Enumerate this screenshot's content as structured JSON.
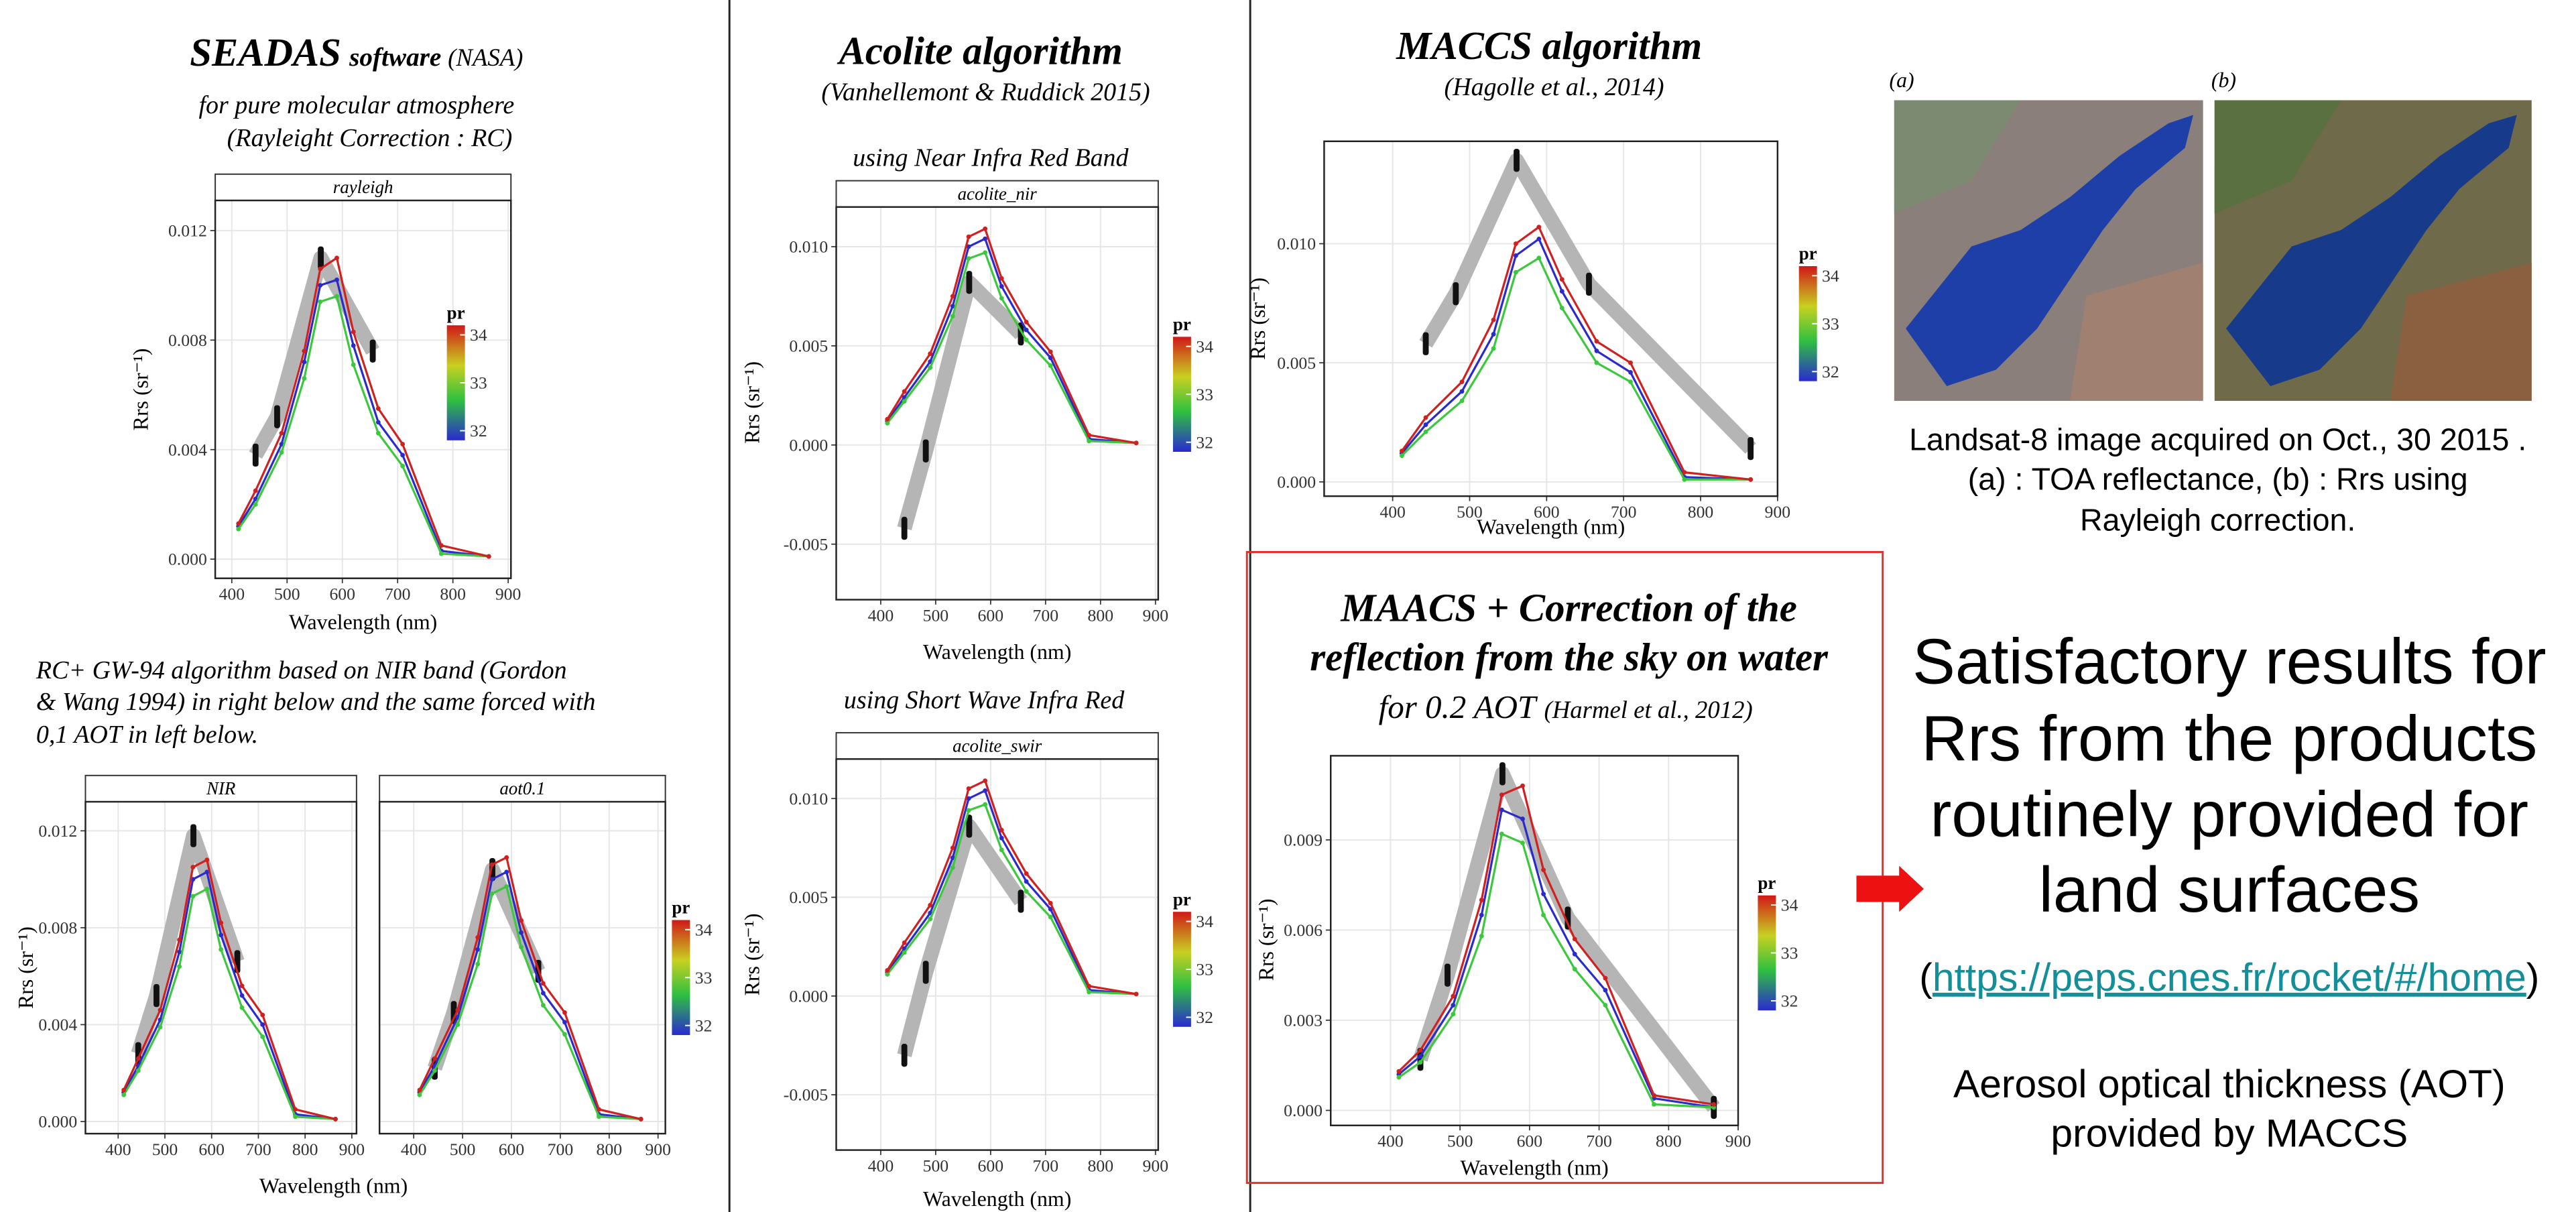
{
  "seadas": {
    "title": "SEADAS",
    "title_sub": "software",
    "title_note": "(NASA)",
    "lines": [
      "for pure molecular atmosphere",
      "(Rayleight Correction : RC)"
    ]
  },
  "gw94_note": [
    "RC+ GW-94 algorithm based on NIR band  (Gordon",
    "& Wang 1994) in right below and the same forced with",
    "0,1 AOT in left below."
  ],
  "acolite": {
    "title": "Acolite  algorithm",
    "subtitle": "(Vanhellemont & Ruddick 2015)",
    "nir_caption": "using Near Infra Red Band",
    "swir_caption": "using Short Wave Infra Red"
  },
  "maccs": {
    "title": "MACCS algorithm",
    "subtitle": "(Hagolle et al., 2014)"
  },
  "maacs_sky": {
    "title_lines": [
      "MAACS + Correction of the",
      "reflection from the sky on water"
    ],
    "subtitle": "for 0.2  AOT",
    "subtitle_ref": "(Harmel et al., 2012)"
  },
  "panels": [
    {
      "type": "line",
      "strip": "rayleigh",
      "x_label": "Wavelength (nm)",
      "y_label": "Rrs (sr⁻¹)",
      "xlim": [
        370,
        905
      ],
      "ylim": [
        -0.0007,
        0.0131
      ],
      "xticks": [
        400,
        500,
        600,
        700,
        800,
        900
      ],
      "yticks": [
        {
          "value": 0,
          "label": "0.000"
        },
        0.004,
        0.008,
        0.012
      ],
      "grid": true,
      "x": [
        412,
        443,
        490,
        531,
        560,
        590,
        620,
        665,
        709,
        779,
        865
      ],
      "series": [
        {
          "color": "#2b2bcc",
          "values": [
            0.0012,
            0.0022,
            0.0042,
            0.0072,
            0.01,
            0.0102,
            0.0078,
            0.005,
            0.0038,
            0.0003,
            0.0001
          ]
        },
        {
          "color": "#3cc83c",
          "values": [
            0.0011,
            0.002,
            0.0039,
            0.0066,
            0.0094,
            0.0096,
            0.0071,
            0.0046,
            0.0034,
            0.0002,
            0.0001
          ]
        },
        {
          "color": "#d02020",
          "values": [
            0.0013,
            0.0025,
            0.0046,
            0.0076,
            0.0106,
            0.011,
            0.0083,
            0.0055,
            0.0042,
            0.0005,
            0.0001
          ]
        }
      ],
      "reference": {
        "color": "#b5b5b5",
        "x": [
          443,
          482,
          561,
          655
        ],
        "values": [
          0.0038,
          0.0052,
          0.011,
          0.0076
        ]
      },
      "legend": {
        "title": "pr",
        "ticks": [
          32,
          33,
          34
        ],
        "lim": [
          31.8,
          34.2
        ]
      }
    },
    {
      "type": "line",
      "strip": "NIR",
      "x_label": "Wavelength (nm)",
      "y_label": "Rrs (sr⁻¹)",
      "xlim": [
        330,
        910
      ],
      "ylim": [
        -0.0005,
        0.0132
      ],
      "xticks": [
        400,
        500,
        600,
        700,
        800,
        900
      ],
      "yticks": [
        {
          "value": 0,
          "label": "0.000"
        },
        0.004,
        0.008,
        0.012
      ],
      "grid": true,
      "x": [
        412,
        443,
        490,
        531,
        560,
        590,
        620,
        665,
        709,
        779,
        865
      ],
      "series": [
        {
          "color": "#2b2bcc",
          "values": [
            0.0012,
            0.0023,
            0.0042,
            0.007,
            0.01,
            0.0103,
            0.0077,
            0.0052,
            0.004,
            0.0003,
            0.0001
          ]
        },
        {
          "color": "#3cc83c",
          "values": [
            0.0011,
            0.0021,
            0.0039,
            0.0064,
            0.0093,
            0.0096,
            0.0071,
            0.0047,
            0.0035,
            0.0002,
            0.0001
          ]
        },
        {
          "color": "#d02020",
          "values": [
            0.0013,
            0.0026,
            0.0046,
            0.0075,
            0.0105,
            0.0108,
            0.0082,
            0.0056,
            0.0044,
            0.0005,
            0.0001
          ]
        }
      ],
      "reference": {
        "color": "#b5b5b5",
        "x": [
          443,
          482,
          561,
          655
        ],
        "values": [
          0.0028,
          0.0052,
          0.0118,
          0.0066
        ]
      },
      "legend": {
        "title": "pr",
        "ticks": [
          32,
          33,
          34
        ],
        "lim": [
          31.8,
          34.2
        ]
      }
    },
    {
      "type": "line",
      "strip": "aot0.1",
      "xlim": [
        330,
        915
      ],
      "ylim": [
        -0.0005,
        0.0132
      ],
      "xticks": [
        400,
        500,
        600,
        700,
        800,
        900
      ],
      "yticks": [
        0,
        0.004,
        0.008,
        0.012
      ],
      "show_ytick_labels": false,
      "grid": true,
      "x": [
        412,
        443,
        490,
        531,
        560,
        590,
        620,
        665,
        709,
        779,
        865
      ],
      "series": [
        {
          "color": "#2b2bcc",
          "values": [
            0.0012,
            0.0023,
            0.0043,
            0.0071,
            0.01,
            0.0103,
            0.0078,
            0.0053,
            0.0041,
            0.0003,
            0.0001
          ]
        },
        {
          "color": "#3cc83c",
          "values": [
            0.0011,
            0.0021,
            0.004,
            0.0065,
            0.0094,
            0.0097,
            0.0072,
            0.0048,
            0.0036,
            0.0002,
            0.0001
          ]
        },
        {
          "color": "#d02020",
          "values": [
            0.0013,
            0.0026,
            0.0046,
            0.0076,
            0.0106,
            0.0109,
            0.0083,
            0.0057,
            0.0045,
            0.0005,
            0.0001
          ]
        }
      ],
      "reference": {
        "color": "#b5b5b5",
        "x": [
          443,
          482,
          561,
          655
        ],
        "values": [
          0.0022,
          0.0045,
          0.0104,
          0.0062
        ]
      }
    },
    {
      "type": "line",
      "strip": "acolite_nir",
      "x_label": "Wavelength (nm)",
      "y_label": "Rrs (sr⁻¹)",
      "xlim": [
        319,
        905
      ],
      "ylim": [
        -0.0078,
        0.012
      ],
      "xticks": [
        400,
        500,
        600,
        700,
        800,
        900
      ],
      "yticks": [
        -0.005,
        {
          "value": 0,
          "label": "0.000"
        },
        0.005,
        {
          "value": 0.01,
          "label": "0.010"
        }
      ],
      "grid": true,
      "x": [
        412,
        443,
        490,
        531,
        560,
        590,
        620,
        665,
        709,
        779,
        865
      ],
      "series": [
        {
          "color": "#2b2bcc",
          "values": [
            0.0012,
            0.0024,
            0.0042,
            0.007,
            0.01,
            0.0104,
            0.008,
            0.0058,
            0.0044,
            0.0003,
            0.0001
          ]
        },
        {
          "color": "#3cc83c",
          "values": [
            0.0011,
            0.0022,
            0.0039,
            0.0065,
            0.0094,
            0.0097,
            0.0074,
            0.0053,
            0.004,
            0.0002,
            0.0001
          ]
        },
        {
          "color": "#d02020",
          "values": [
            0.0013,
            0.0027,
            0.0046,
            0.0075,
            0.0105,
            0.0109,
            0.0084,
            0.0062,
            0.0047,
            0.0005,
            0.0001
          ]
        }
      ],
      "reference": {
        "color": "#b5b5b5",
        "x": [
          443,
          482,
          561,
          655
        ],
        "values": [
          -0.0042,
          -0.0003,
          0.0082,
          0.0056
        ]
      },
      "legend": {
        "title": "pr",
        "ticks": [
          32,
          33,
          34
        ],
        "lim": [
          31.8,
          34.2
        ]
      }
    },
    {
      "type": "line",
      "strip": "acolite_swir",
      "x_label": "Wavelength (nm)",
      "y_label": "Rrs (sr⁻¹)",
      "xlim": [
        319,
        905
      ],
      "ylim": [
        -0.0078,
        0.012
      ],
      "xticks": [
        400,
        500,
        600,
        700,
        800,
        900
      ],
      "yticks": [
        -0.005,
        {
          "value": 0,
          "label": "0.000"
        },
        0.005,
        {
          "value": 0.01,
          "label": "0.010"
        }
      ],
      "grid": true,
      "x": [
        412,
        443,
        490,
        531,
        560,
        590,
        620,
        665,
        709,
        779,
        865
      ],
      "series": [
        {
          "color": "#2b2bcc",
          "values": [
            0.0012,
            0.0024,
            0.0042,
            0.007,
            0.01,
            0.0104,
            0.008,
            0.0058,
            0.0044,
            0.0003,
            0.0001
          ]
        },
        {
          "color": "#3cc83c",
          "values": [
            0.0011,
            0.0022,
            0.0039,
            0.0065,
            0.0094,
            0.0097,
            0.0074,
            0.0053,
            0.004,
            0.0002,
            0.0001
          ]
        },
        {
          "color": "#d02020",
          "values": [
            0.0013,
            0.0027,
            0.0046,
            0.0075,
            0.0105,
            0.0109,
            0.0084,
            0.0062,
            0.0047,
            0.0005,
            0.0001
          ]
        }
      ],
      "reference": {
        "color": "#b5b5b5",
        "x": [
          443,
          482,
          561,
          655
        ],
        "values": [
          -0.003,
          0.0012,
          0.0086,
          0.0048
        ]
      },
      "legend": {
        "title": "pr",
        "ticks": [
          32,
          33,
          34
        ],
        "lim": [
          31.8,
          34.2
        ]
      }
    },
    {
      "type": "line",
      "x_label": "Wavelength (nm)",
      "y_label": "Rrs (sr⁻¹)",
      "xlim": [
        311,
        900
      ],
      "ylim": [
        -0.0006,
        0.0143
      ],
      "xticks": [
        400,
        500,
        600,
        700,
        800,
        900
      ],
      "yticks": [
        {
          "value": 0,
          "label": "0.000"
        },
        0.005,
        {
          "value": 0.01,
          "label": "0.010"
        }
      ],
      "grid": true,
      "x": [
        412,
        443,
        490,
        531,
        560,
        590,
        620,
        665,
        709,
        779,
        865
      ],
      "series": [
        {
          "color": "#2b2bcc",
          "values": [
            0.0012,
            0.0024,
            0.0038,
            0.0062,
            0.0095,
            0.0102,
            0.008,
            0.0055,
            0.0046,
            0.0002,
            0.0001
          ]
        },
        {
          "color": "#3cc83c",
          "values": [
            0.0011,
            0.0021,
            0.0034,
            0.0056,
            0.0088,
            0.0094,
            0.0073,
            0.005,
            0.0042,
            0.0001,
            0.0001
          ]
        },
        {
          "color": "#d02020",
          "values": [
            0.0013,
            0.0027,
            0.0042,
            0.0068,
            0.01,
            0.0107,
            0.0085,
            0.0059,
            0.005,
            0.0004,
            0.0001
          ]
        }
      ],
      "reference": {
        "color": "#b5b5b5",
        "x": [
          443,
          482,
          561,
          655,
          865
        ],
        "values": [
          0.0058,
          0.0079,
          0.0135,
          0.0083,
          0.0014
        ]
      },
      "legend": {
        "title": "pr",
        "ticks": [
          32,
          33,
          34
        ],
        "lim": [
          31.8,
          34.2
        ]
      }
    },
    {
      "type": "line",
      "x_label": "Wavelength (nm)",
      "y_label": "Rrs (sr⁻¹)",
      "xlim": [
        314,
        900
      ],
      "ylim": [
        -0.0005,
        0.0118
      ],
      "xticks": [
        400,
        500,
        600,
        700,
        800,
        900
      ],
      "yticks": [
        {
          "value": 0,
          "label": "0.000"
        },
        0.003,
        0.006,
        0.009
      ],
      "grid": true,
      "x": [
        412,
        443,
        490,
        531,
        560,
        590,
        620,
        665,
        709,
        779,
        865
      ],
      "series": [
        {
          "color": "#2b2bcc",
          "values": [
            0.0012,
            0.0018,
            0.0035,
            0.0065,
            0.01,
            0.0097,
            0.0072,
            0.0052,
            0.004,
            0.0004,
            0.0001
          ]
        },
        {
          "color": "#3cc83c",
          "values": [
            0.0011,
            0.0016,
            0.0032,
            0.0058,
            0.0092,
            0.0089,
            0.0065,
            0.0047,
            0.0035,
            0.0002,
            0.0001
          ]
        },
        {
          "color": "#d02020",
          "values": [
            0.0013,
            0.002,
            0.0038,
            0.007,
            0.0105,
            0.0108,
            0.008,
            0.0057,
            0.0044,
            0.0005,
            0.0002
          ]
        }
      ],
      "reference": {
        "color": "#b5b5b5",
        "x": [
          443,
          482,
          561,
          655,
          865
        ],
        "values": [
          0.0017,
          0.0045,
          0.0112,
          0.0064,
          0.0001
        ]
      },
      "legend": {
        "title": "pr",
        "ticks": [
          32,
          33,
          34
        ],
        "lim": [
          31.8,
          34.2
        ]
      }
    }
  ],
  "landsat": {
    "labels": [
      "(a)",
      "(b)"
    ],
    "caption": [
      "Landsat-8 image acquired on Oct., 30 2015 .",
      "(a) : TOA  reflectance, (b) : Rrs using",
      "Rayleigh correction."
    ]
  },
  "conclusion": {
    "lines": [
      "Satisfactory results for",
      "Rrs from the products",
      "routinely provided for",
      "land surfaces"
    ],
    "link_open": "(",
    "link": "https://peps.cnes.fr/rocket/#/home",
    "link_close": ")",
    "aot_lines": [
      "Aerosol optical thickness (AOT)",
      "provided by MACCS"
    ]
  }
}
